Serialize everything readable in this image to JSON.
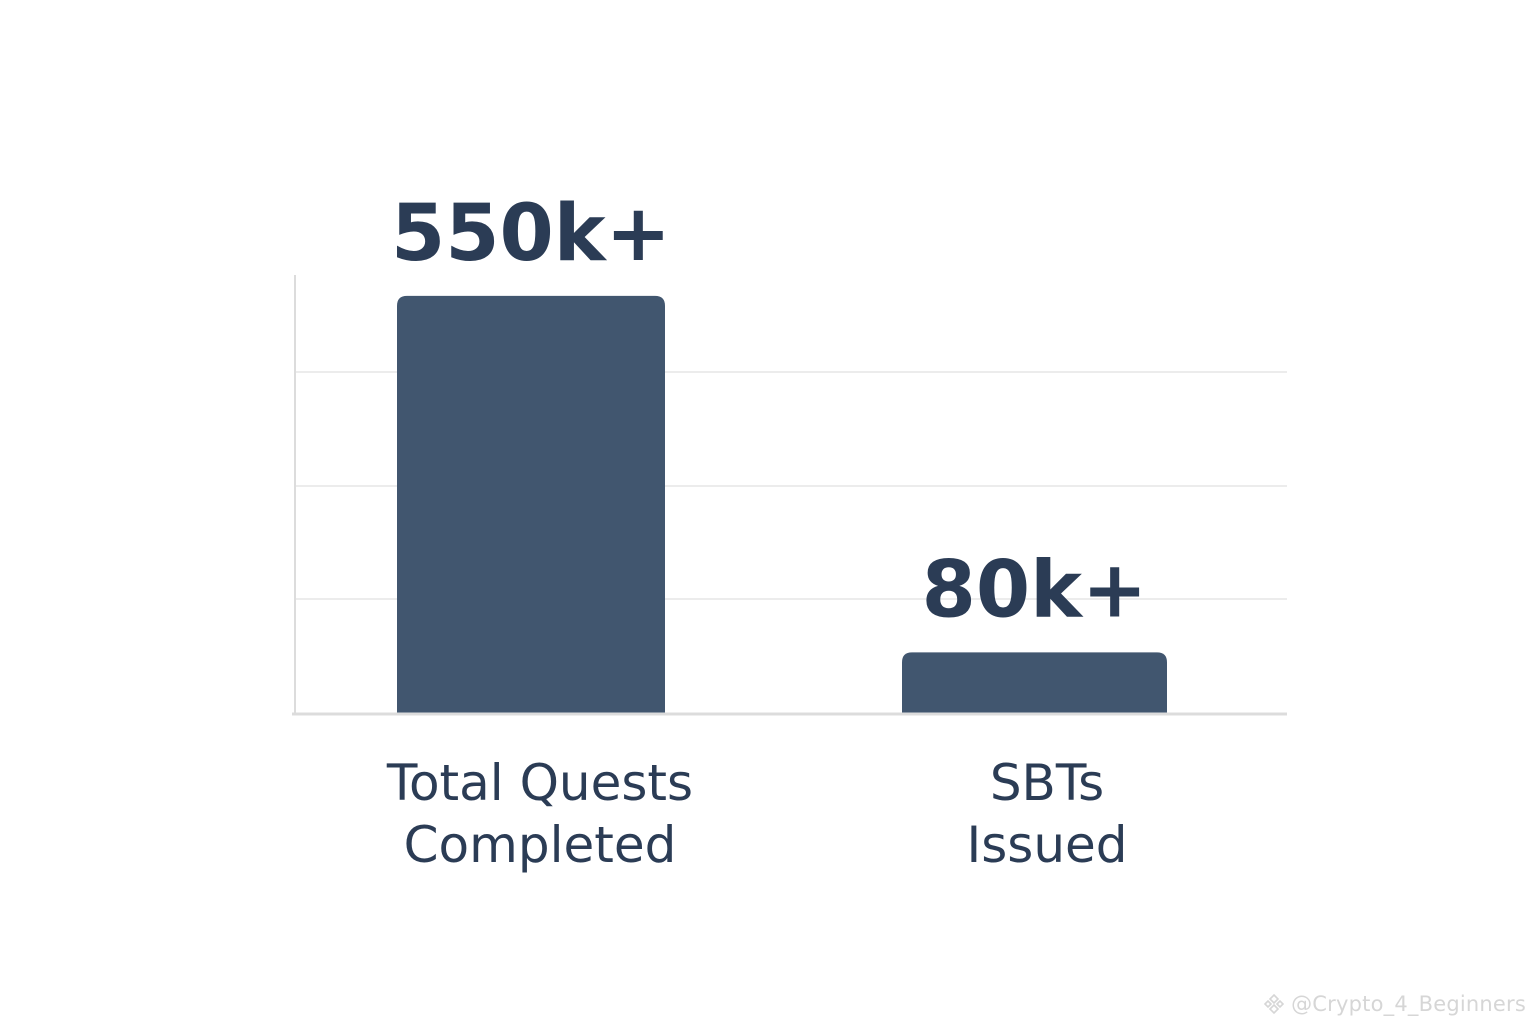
{
  "chart_data": {
    "type": "bar",
    "categories": [
      [
        "Total Quests",
        "Completed"
      ],
      [
        "SBTs",
        "Issued"
      ]
    ],
    "values": [
      550000,
      80000
    ],
    "data_labels": [
      "550k+",
      "80k+"
    ],
    "title": "",
    "xlabel": "",
    "ylabel": "",
    "ylim": [
      0,
      600000
    ],
    "grid": true,
    "colors": {
      "bar": "#41566f",
      "label": "#2b3c55",
      "grid": "#e6e6e6",
      "axis": "#dcdcdc"
    }
  },
  "watermark": {
    "icon": "binance-logo-icon",
    "text": "@Crypto_4_Beginners"
  }
}
